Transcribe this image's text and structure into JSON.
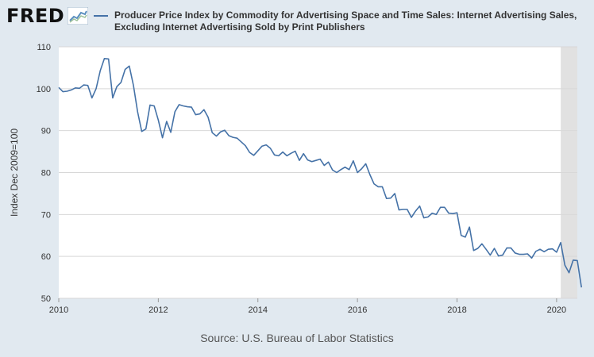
{
  "brand": {
    "logo_text": "FRED"
  },
  "colors": {
    "series": "#4572a7",
    "recession": "#e1e1e1",
    "grid": "#d8d8d8"
  },
  "chart_data": {
    "type": "line",
    "title": "Producer Price Index by Commodity for Advertising Space and Time Sales: Internet Advertising Sales, Excluding Internet Advertising Sold by Print Publishers",
    "ylabel": "Index Dec 2009=100",
    "xlabel": "",
    "source": "Source: U.S. Bureau of Labor Statistics",
    "ylim": [
      50,
      110
    ],
    "xlim": [
      "2010-01",
      "2020-06"
    ],
    "yticks": [
      50,
      60,
      70,
      80,
      90,
      100,
      110
    ],
    "xticks": [
      "2010",
      "2012",
      "2014",
      "2016",
      "2018",
      "2020"
    ],
    "grid": true,
    "recession": {
      "start": "2020-02",
      "end": "2020-06"
    },
    "series": [
      {
        "name": "Producer Price Index by Commodity for Advertising Space and Time Sales: Internet Advertising Sales, Excluding Internet Advertising Sold by Print Publishers",
        "start": "2010-01",
        "frequency": "monthly",
        "values": [
          100.3,
          99.3,
          99.4,
          99.7,
          100.2,
          100.1,
          100.9,
          100.8,
          97.8,
          100.0,
          104.3,
          107.2,
          107.1,
          97.8,
          100.5,
          101.5,
          104.6,
          105.4,
          100.8,
          94.5,
          89.8,
          90.4,
          96.1,
          95.9,
          92.5,
          88.3,
          92.2,
          89.6,
          94.5,
          96.2,
          95.9,
          95.7,
          95.6,
          93.8,
          94.0,
          95.0,
          93.2,
          89.5,
          88.7,
          89.7,
          90.1,
          88.8,
          88.4,
          88.2,
          87.3,
          86.4,
          84.8,
          84.1,
          85.2,
          86.3,
          86.6,
          85.8,
          84.2,
          84.0,
          84.9,
          84.0,
          84.6,
          85.1,
          82.9,
          84.5,
          83.0,
          82.6,
          82.9,
          83.2,
          81.7,
          82.5,
          80.6,
          80.0,
          80.7,
          81.3,
          80.7,
          82.8,
          80.0,
          80.9,
          82.1,
          79.5,
          77.3,
          76.6,
          76.6,
          73.8,
          73.9,
          75.0,
          71.1,
          71.2,
          71.2,
          69.3,
          70.8,
          72.0,
          69.2,
          69.4,
          70.3,
          70.0,
          71.7,
          71.7,
          70.3,
          70.2,
          70.4,
          65.0,
          64.6,
          67.0,
          61.4,
          61.9,
          63.0,
          61.7,
          60.3,
          61.9,
          60.1,
          60.3,
          62.0,
          62.0,
          60.8,
          60.5,
          60.5,
          60.6,
          59.6,
          61.2,
          61.7,
          61.1,
          61.7,
          61.8,
          61.0,
          63.3,
          57.9,
          56.1,
          59.1,
          59.0,
          52.6
        ]
      }
    ]
  }
}
